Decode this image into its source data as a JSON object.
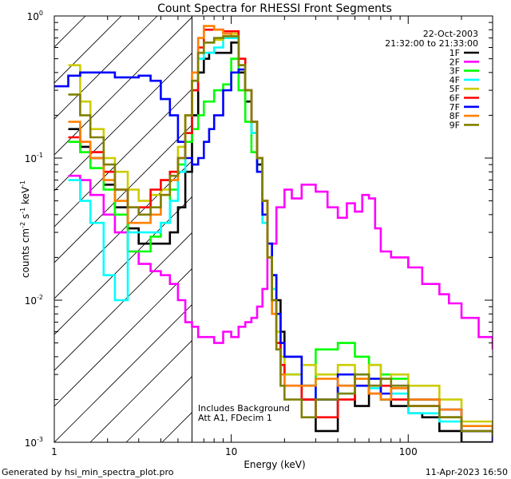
{
  "chart_data": {
    "type": "line",
    "title": "Count Spectra for RHESSI Front Segments",
    "xlabel": "Energy (keV)",
    "ylabel": "counts cm-2 s-1 keV-1",
    "ylabel_parts": {
      "base": "counts cm",
      "e1": "-2",
      "mid1": " s",
      "e2": "-1",
      "mid2": " keV",
      "e3": "-1"
    },
    "x_scale": "log",
    "y_scale": "log",
    "xlim": [
      1.0,
      300.0
    ],
    "ylim": [
      0.001,
      1.0
    ],
    "x_tick_labels": [
      {
        "v": 1,
        "t": "1"
      },
      {
        "v": 10,
        "t": "10"
      },
      {
        "v": 100,
        "t": "100"
      }
    ],
    "y_tick_labels": [
      {
        "v": 0.001,
        "b": "10",
        "e": "-3"
      },
      {
        "v": 0.01,
        "b": "10",
        "e": "-2"
      },
      {
        "v": 0.1,
        "b": "10",
        "e": "-1"
      },
      {
        "v": 1.0,
        "b": "10",
        "e": "0"
      }
    ],
    "date": "22-Oct-2003",
    "time_range": "21:32:00 to 21:33:00",
    "annotations": [
      "Includes Background",
      "Att A1, FDecim 1"
    ],
    "cutoff_energy_keV": 6.0,
    "series": [
      {
        "name": "1F",
        "color": "#000000",
        "x": [
          1.2,
          1.4,
          1.6,
          1.9,
          2.2,
          2.6,
          3.0,
          3.5,
          4.0,
          4.5,
          5.0,
          5.5,
          6.0,
          6.5,
          7.0,
          7.5,
          8.0,
          9.0,
          10.0,
          11.0,
          12.0,
          13.0,
          14.0,
          15.0,
          16.0,
          17.0,
          18.0,
          19.0,
          20.0,
          25.0,
          30.0,
          40.0,
          50.0,
          60.0,
          70.0,
          80.0,
          100.0,
          120.0,
          150.0,
          200.0,
          250.0,
          300.0
        ],
        "y": [
          0.16,
          0.12,
          0.1,
          0.065,
          0.045,
          0.032,
          0.025,
          0.025,
          0.025,
          0.03,
          0.045,
          0.08,
          0.2,
          0.4,
          0.5,
          0.55,
          0.55,
          0.55,
          0.65,
          0.4,
          0.25,
          0.15,
          0.09,
          0.05,
          0.025,
          0.015,
          0.01,
          0.006,
          0.004,
          0.002,
          0.0012,
          0.0025,
          0.0018,
          0.0025,
          0.002,
          0.0018,
          0.0016,
          0.0015,
          0.0012,
          0.001,
          0.001,
          0.001
        ]
      },
      {
        "name": "2F",
        "color": "#ff00ff",
        "x": [
          1.2,
          1.4,
          1.6,
          1.9,
          2.2,
          2.6,
          3.0,
          3.5,
          4.0,
          4.5,
          5.0,
          5.5,
          6.0,
          6.5,
          7.0,
          8.0,
          9.0,
          10.0,
          11.0,
          12.0,
          13.0,
          14.0,
          15.0,
          16.0,
          18.0,
          20.0,
          22.0,
          25.0,
          28.0,
          30.0,
          35.0,
          40.0,
          45.0,
          50.0,
          55.0,
          60.0,
          65.0,
          70.0,
          80.0,
          100.0,
          120.0,
          150.0,
          170.0,
          200.0,
          250.0,
          300.0
        ],
        "y": [
          0.075,
          0.07,
          0.055,
          0.04,
          0.03,
          0.022,
          0.018,
          0.016,
          0.015,
          0.013,
          0.01,
          0.007,
          0.0065,
          0.0055,
          0.0055,
          0.005,
          0.006,
          0.0055,
          0.0065,
          0.007,
          0.0075,
          0.009,
          0.012,
          0.025,
          0.045,
          0.06,
          0.052,
          0.065,
          0.065,
          0.058,
          0.045,
          0.038,
          0.048,
          0.042,
          0.055,
          0.052,
          0.032,
          0.022,
          0.02,
          0.017,
          0.013,
          0.011,
          0.0095,
          0.0075,
          0.0055,
          0.0045
        ]
      },
      {
        "name": "3F",
        "color": "#00ff00",
        "x": [
          1.2,
          1.4,
          1.6,
          1.9,
          2.2,
          2.6,
          3.0,
          3.5,
          4.0,
          4.5,
          5.0,
          5.5,
          6.0,
          6.5,
          7.0,
          8.0,
          9.0,
          10.0,
          11.0,
          12.0,
          13.0,
          14.0,
          15.0,
          16.0,
          17.0,
          18.0,
          19.0,
          20.0,
          25.0,
          30.0,
          40.0,
          50.0,
          60.0,
          70.0,
          80.0,
          100.0,
          150.0,
          200.0,
          300.0
        ],
        "y": [
          0.13,
          0.11,
          0.085,
          0.06,
          0.04,
          0.022,
          0.022,
          0.028,
          0.035,
          0.06,
          0.09,
          0.13,
          0.16,
          0.2,
          0.25,
          0.3,
          0.33,
          0.5,
          0.3,
          0.18,
          0.11,
          0.1,
          0.05,
          0.02,
          0.008,
          0.005,
          0.004,
          0.003,
          0.0025,
          0.0045,
          0.005,
          0.004,
          0.0035,
          0.003,
          0.0028,
          0.002,
          0.0015,
          0.0013,
          0.0011
        ]
      },
      {
        "name": "4F",
        "color": "#00ffff",
        "x": [
          1.2,
          1.4,
          1.6,
          1.9,
          2.2,
          2.6,
          3.0,
          3.5,
          4.0,
          4.5,
          5.0,
          5.5,
          6.0,
          6.5,
          7.0,
          8.0,
          9.0,
          10.0,
          11.0,
          12.0,
          13.0,
          14.0,
          15.0,
          16.0,
          17.0,
          18.0,
          19.0,
          20.0,
          25.0,
          30.0,
          40.0,
          50.0,
          60.0,
          70.0,
          80.0,
          100.0,
          150.0,
          200.0,
          300.0
        ],
        "y": [
          0.07,
          0.05,
          0.035,
          0.015,
          0.01,
          0.03,
          0.03,
          0.03,
          0.035,
          0.05,
          0.08,
          0.15,
          0.3,
          0.5,
          0.55,
          0.6,
          0.7,
          0.7,
          0.45,
          0.3,
          0.15,
          0.08,
          0.035,
          0.02,
          0.012,
          0.006,
          0.004,
          0.003,
          0.0025,
          0.002,
          0.0022,
          0.003,
          0.0024,
          0.002,
          0.0022,
          0.0016,
          0.0014,
          0.0012,
          0.0011
        ]
      },
      {
        "name": "5F",
        "color": "#cccc00",
        "x": [
          1.2,
          1.4,
          1.6,
          1.9,
          2.2,
          2.6,
          3.0,
          3.5,
          4.0,
          4.5,
          5.0,
          5.5,
          6.0,
          6.5,
          7.0,
          8.0,
          9.0,
          10.0,
          11.0,
          12.0,
          13.0,
          14.0,
          15.0,
          16.0,
          17.0,
          18.0,
          19.0,
          20.0,
          25.0,
          30.0,
          40.0,
          50.0,
          60.0,
          70.0,
          80.0,
          100.0,
          150.0,
          200.0,
          300.0
        ],
        "y": [
          0.45,
          0.25,
          0.16,
          0.1,
          0.08,
          0.06,
          0.05,
          0.055,
          0.06,
          0.08,
          0.12,
          0.2,
          0.35,
          0.55,
          0.65,
          0.68,
          0.72,
          0.75,
          0.45,
          0.3,
          0.18,
          0.1,
          0.05,
          0.02,
          0.01,
          0.006,
          0.004,
          0.003,
          0.0035,
          0.003,
          0.0035,
          0.0028,
          0.0035,
          0.0028,
          0.003,
          0.0025,
          0.002,
          0.0014,
          0.0011
        ]
      },
      {
        "name": "6F",
        "color": "#ff0000",
        "x": [
          1.2,
          1.4,
          1.6,
          1.9,
          2.2,
          2.6,
          3.0,
          3.5,
          4.0,
          4.5,
          5.0,
          5.5,
          6.0,
          6.5,
          7.0,
          8.0,
          9.0,
          10.0,
          11.0,
          12.0,
          13.0,
          14.0,
          15.0,
          16.0,
          17.0,
          18.0,
          19.0,
          20.0,
          25.0,
          30.0,
          40.0,
          50.0,
          60.0,
          70.0,
          80.0,
          100.0,
          150.0,
          200.0,
          300.0
        ],
        "y": [
          0.14,
          0.13,
          0.11,
          0.08,
          0.06,
          0.045,
          0.045,
          0.06,
          0.07,
          0.08,
          0.1,
          0.15,
          0.3,
          0.6,
          0.8,
          0.8,
          0.78,
          0.78,
          0.5,
          0.3,
          0.18,
          0.1,
          0.05,
          0.02,
          0.01,
          0.005,
          0.0035,
          0.0025,
          0.002,
          0.0015,
          0.002,
          0.0025,
          0.0022,
          0.0025,
          0.002,
          0.0018,
          0.0015,
          0.0012,
          0.0011
        ]
      },
      {
        "name": "7F",
        "color": "#0000ff",
        "x": [
          1.0,
          1.2,
          1.4,
          1.6,
          1.9,
          2.2,
          2.6,
          3.0,
          3.5,
          4.0,
          4.5,
          5.0,
          5.5,
          6.0,
          6.5,
          7.0,
          7.5,
          8.0,
          9.0,
          10.0,
          11.0,
          12.0,
          13.0,
          14.0,
          15.0,
          16.0,
          17.0,
          18.0,
          19.0,
          20.0,
          25.0,
          30.0,
          40.0,
          50.0,
          60.0,
          70.0,
          80.0,
          100.0,
          150.0,
          200.0,
          300.0
        ],
        "y": [
          0.32,
          0.38,
          0.4,
          0.4,
          0.4,
          0.37,
          0.37,
          0.38,
          0.35,
          0.26,
          0.2,
          0.13,
          0.1,
          0.09,
          0.1,
          0.13,
          0.16,
          0.2,
          0.3,
          0.4,
          0.42,
          0.3,
          0.18,
          0.08,
          0.04,
          0.025,
          0.015,
          0.008,
          0.005,
          0.004,
          0.0025,
          0.002,
          0.003,
          0.0025,
          0.0028,
          0.0022,
          0.0025,
          0.002,
          0.0017,
          0.0012,
          0.001
        ]
      },
      {
        "name": "8F",
        "color": "#ff8000",
        "x": [
          1.2,
          1.4,
          1.6,
          1.9,
          2.2,
          2.6,
          3.0,
          3.5,
          4.0,
          4.5,
          5.0,
          5.5,
          6.0,
          6.5,
          7.0,
          8.0,
          9.0,
          10.0,
          11.0,
          12.0,
          13.0,
          14.0,
          15.0,
          16.0,
          17.0,
          18.0,
          19.0,
          20.0,
          25.0,
          30.0,
          40.0,
          50.0,
          60.0,
          70.0,
          80.0,
          100.0,
          150.0,
          200.0,
          300.0
        ],
        "y": [
          0.18,
          0.13,
          0.1,
          0.07,
          0.05,
          0.035,
          0.035,
          0.04,
          0.055,
          0.07,
          0.1,
          0.2,
          0.4,
          0.7,
          0.85,
          0.8,
          0.75,
          0.72,
          0.45,
          0.3,
          0.18,
          0.1,
          0.05,
          0.02,
          0.008,
          0.0045,
          0.003,
          0.0025,
          0.0025,
          0.0028,
          0.0025,
          0.0028,
          0.0022,
          0.002,
          0.0024,
          0.002,
          0.0017,
          0.0013,
          0.0011
        ]
      },
      {
        "name": "9F",
        "color": "#808000",
        "x": [
          1.2,
          1.4,
          1.6,
          1.9,
          2.2,
          2.6,
          3.0,
          3.5,
          4.0,
          4.5,
          5.0,
          5.5,
          6.0,
          6.5,
          7.0,
          8.0,
          9.0,
          10.0,
          11.0,
          12.0,
          13.0,
          14.0,
          15.0,
          16.0,
          17.0,
          18.0,
          19.0,
          20.0,
          25.0,
          30.0,
          40.0,
          50.0,
          60.0,
          70.0,
          80.0,
          100.0,
          150.0,
          200.0,
          300.0
        ],
        "y": [
          0.28,
          0.2,
          0.14,
          0.09,
          0.06,
          0.045,
          0.04,
          0.045,
          0.055,
          0.075,
          0.1,
          0.2,
          0.35,
          0.55,
          0.65,
          0.7,
          0.72,
          0.72,
          0.45,
          0.3,
          0.18,
          0.1,
          0.05,
          0.02,
          0.01,
          0.0045,
          0.0025,
          0.002,
          0.0015,
          0.002,
          0.0022,
          0.003,
          0.0025,
          0.0028,
          0.0025,
          0.0018,
          0.0015,
          0.0012,
          0.0011
        ]
      }
    ]
  },
  "footer": {
    "generated_by": "Generated by hsi_min_spectra_plot.pro",
    "date": "11-Apr-2023 16:50"
  }
}
